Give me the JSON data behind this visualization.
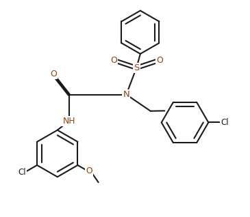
{
  "bg_color": "#ffffff",
  "bond_color": "#1a1a1a",
  "heteroatom_color": "#8B4513",
  "line_width": 1.5,
  "figsize": [
    3.65,
    3.18
  ],
  "dpi": 100,
  "xlim": [
    0,
    9.5
  ],
  "ylim": [
    0,
    8.5
  ]
}
